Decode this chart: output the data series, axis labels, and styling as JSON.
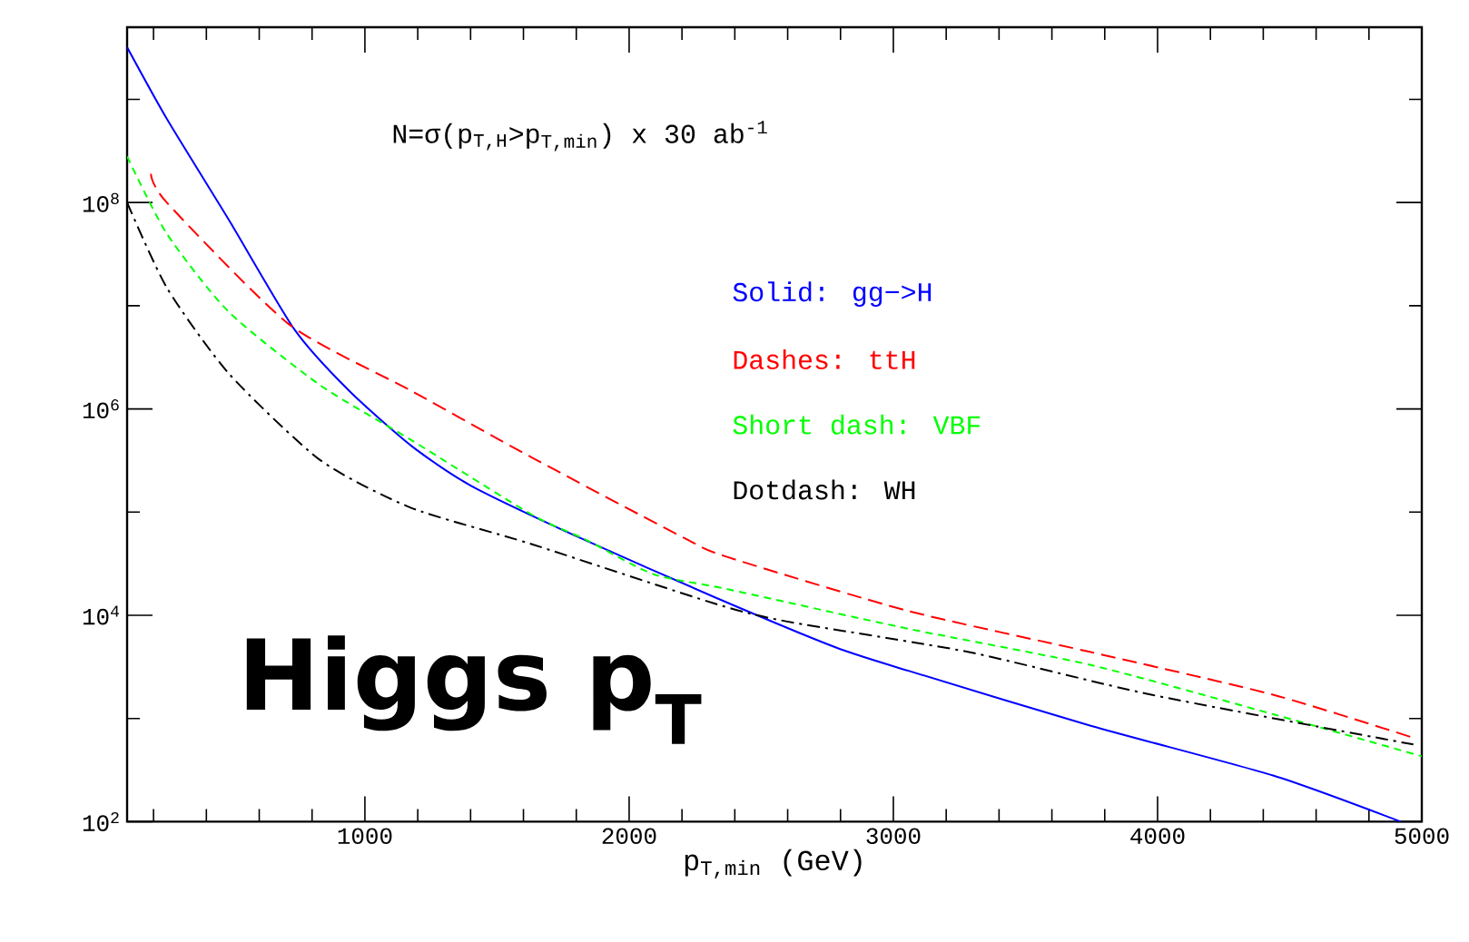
{
  "chart_data": {
    "type": "line",
    "xlabel": "p$_{T,min}$ (GeV)",
    "annotations": [
      "N=σ(p$_{T,H}$>p$_{T,min}$) x 30 ab$^{-1}$",
      "Higgs p$_{T}$"
    ],
    "log": "y",
    "legend": "top right",
    "grid": false,
    "marker": "none",
    "xlim": [
      100,
      5000
    ],
    "ylim": [
      100,
      5000000000
    ],
    "xticks": [
      {
        "value": 200,
        "label": null
      },
      {
        "value": 400,
        "label": null
      },
      {
        "value": 600,
        "label": null
      },
      {
        "value": 800,
        "label": null
      },
      1000,
      {
        "value": 1200,
        "label": null
      },
      {
        "value": 1400,
        "label": null
      },
      {
        "value": 1600,
        "label": null
      },
      {
        "value": 1800,
        "label": null
      },
      2000,
      {
        "value": 2200,
        "label": null
      },
      {
        "value": 2400,
        "label": null
      },
      {
        "value": 2600,
        "label": null
      },
      {
        "value": 2800,
        "label": null
      },
      3000,
      {
        "value": 3200,
        "label": null
      },
      {
        "value": 3400,
        "label": null
      },
      {
        "value": 3600,
        "label": null
      },
      {
        "value": 3800,
        "label": null
      },
      4000,
      {
        "value": 4200,
        "label": null
      },
      {
        "value": 4400,
        "label": null
      },
      {
        "value": 4600,
        "label": null
      },
      {
        "value": 4800,
        "label": null
      },
      5000
    ],
    "yticks": [
      {
        "value": 100,
        "label": "10$^{2}$"
      },
      {
        "value": 1000,
        "label": null
      },
      {
        "value": 10000,
        "label": "10$^{4}$"
      },
      {
        "value": 100000,
        "label": null
      },
      {
        "value": 1000000,
        "label": "10$^{6}$"
      },
      {
        "value": 10000000,
        "label": null
      },
      {
        "value": 100000000,
        "label": "10$^{8}$"
      },
      {
        "value": 1000000000,
        "label": null
      }
    ],
    "series": [
      {
        "name": "Solid: gg−>H",
        "color": "#0000ff",
        "line_style": "solid",
        "x": [
          100,
          250,
          485,
          733,
          940,
          1175,
          1402,
          1816,
          2323,
          2781,
          3057,
          3747,
          4437,
          4920
        ],
        "values": [
          3200000000,
          650000000,
          68000000,
          5900000,
          1500000,
          440000,
          180000,
          56000,
          15000,
          4900,
          2900,
          850,
          280,
          100
        ]
      },
      {
        "name": "Dashes: ttH",
        "color": "#ff0000",
        "line_style": "dashed",
        "x": [
          190,
          250,
          713,
          1175,
          1630,
          2209,
          2368,
          3057,
          3747,
          4437,
          4968
        ],
        "values": [
          190000000,
          100000000,
          6600000,
          1500000,
          340000,
          56000,
          37000,
          11000,
          4400,
          1700,
          650
        ]
      },
      {
        "name": "Short dash: VBF",
        "color": "#00ff00",
        "line_style": "densely dashed",
        "x": [
          100,
          250,
          485,
          830,
          1175,
          1630,
          1836,
          2092,
          2368,
          3057,
          3747,
          4437,
          5000
        ],
        "values": [
          280000000,
          50000000,
          8700000,
          1700000,
          500000,
          95000,
          54000,
          25000,
          18000,
          7400,
          3300,
          1100,
          430
        ]
      },
      {
        "name": "Dotdash: WH",
        "color": "#000000",
        "line_style": "dashdot",
        "x": [
          100,
          250,
          485,
          830,
          1175,
          1630,
          2323,
          2598,
          3286,
          3976,
          4968
        ],
        "values": [
          100000000,
          15000000,
          2200000,
          320000,
          110000,
          49000,
          13000,
          8700,
          4400,
          1700,
          560
        ]
      }
    ]
  }
}
